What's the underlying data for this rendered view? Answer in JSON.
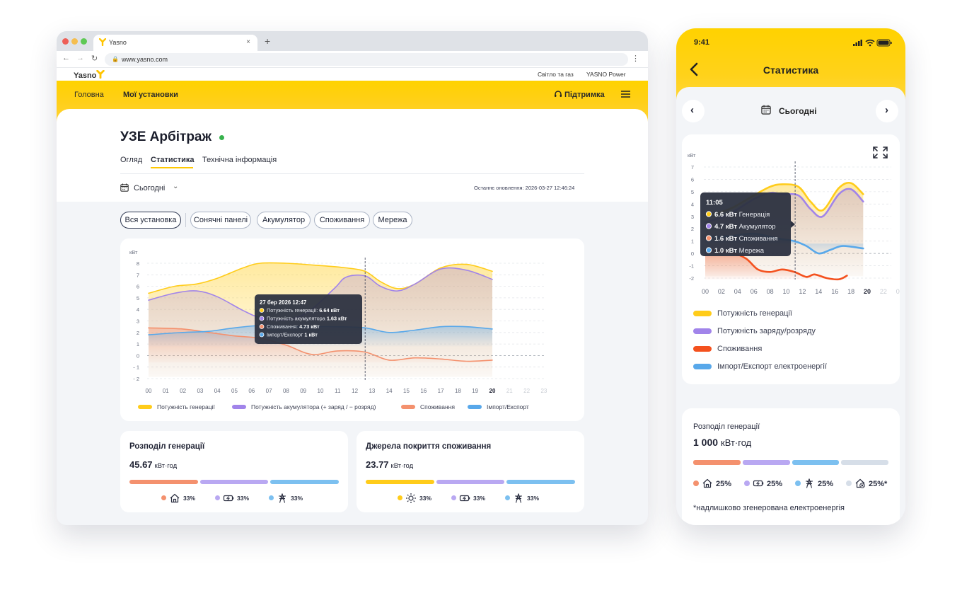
{
  "browser": {
    "tab_title": "Yasno",
    "tab_close": "×",
    "new_tab": "+",
    "url": "www.yasno.com",
    "nav_back": "←",
    "nav_forward": "→",
    "nav_reload": "↻",
    "lock": "🔒",
    "menu": "⋮"
  },
  "site": {
    "logo": "Yasno",
    "top_links": [
      "Світло та газ",
      "YASNO Power"
    ],
    "nav": {
      "home": "Головна",
      "installations": "Мої установки",
      "support": "Підтримка"
    },
    "page_title": "УЗЕ Арбітраж",
    "tabs": [
      "Огляд",
      "Статистика",
      "Технічна інформація"
    ],
    "date_filter": "Сьогодні",
    "date_chevron": "⌄",
    "updated": "Останнє оновлення: 2026-03-27 12:46:24",
    "filters": [
      "Вся установка",
      "Сонячні панелі",
      "Акумулятор",
      "Споживання",
      "Мережа"
    ]
  },
  "chart_data": [
    {
      "type": "area",
      "ylabel": "кВт",
      "ylim": [
        -2,
        8
      ],
      "yticks": [
        "8",
        "7",
        "6",
        "5",
        "4",
        "3",
        "2",
        "1",
        "0",
        "- 1",
        "- 2"
      ],
      "categories": [
        "00",
        "01",
        "02",
        "03",
        "04",
        "05",
        "06",
        "07",
        "08",
        "09",
        "10",
        "11",
        "12",
        "13",
        "14",
        "15",
        "16",
        "17",
        "18",
        "19",
        "20",
        "21",
        "22",
        "23"
      ],
      "current_hour": "20",
      "cursor_x": 12.6,
      "series": [
        {
          "name": "Потужність генерації",
          "color": "#ffcc1a",
          "x": [
            0,
            1.5,
            2.8,
            4,
            5.5,
            6.5,
            8,
            10,
            11.5,
            12.6,
            13.5,
            14.5,
            15.5,
            17,
            18.5,
            20
          ],
          "values": [
            5.4,
            6.0,
            6.2,
            6.7,
            7.6,
            8.0,
            8.0,
            7.8,
            7.6,
            7.3,
            6.4,
            5.8,
            6.2,
            7.6,
            7.9,
            7.3
          ]
        },
        {
          "name": "Потужність акумулятора (+ заряд / − розряд)",
          "color": "#a184ea",
          "x": [
            0,
            1.5,
            2.8,
            4,
            5.5,
            6.5,
            8,
            9.3,
            10.8,
            11.5,
            12.6,
            13.5,
            14.5,
            15.5,
            17,
            18.5,
            20
          ],
          "values": [
            4.8,
            5.4,
            5.6,
            5.1,
            3.9,
            3.3,
            3.1,
            3.8,
            5.8,
            6.8,
            6.9,
            6.0,
            5.6,
            6.2,
            7.5,
            7.4,
            6.6
          ]
        },
        {
          "name": "Споживання",
          "color": "#f4916e",
          "x": [
            0,
            2,
            3.5,
            5,
            6.5,
            8,
            9.5,
            11,
            12.6,
            14,
            15.5,
            17,
            18.5,
            20
          ],
          "values": [
            2.4,
            2.3,
            2.0,
            1.7,
            1.5,
            0.9,
            0.1,
            0.4,
            0.3,
            -0.4,
            -0.2,
            -0.3,
            -0.5,
            -0.4
          ]
        },
        {
          "name": "Імпорт/Експорт",
          "color": "#58a8ea",
          "x": [
            0,
            2,
            3.5,
            5,
            6.5,
            8,
            9.5,
            11,
            12.6,
            14,
            15.5,
            17,
            18.5,
            20
          ],
          "values": [
            1.8,
            2.0,
            2.1,
            2.4,
            2.6,
            2.5,
            2.5,
            2.5,
            2.4,
            2.0,
            2.2,
            2.5,
            2.5,
            2.3
          ]
        }
      ],
      "tooltip": {
        "title": "27 бер 2026 12:47",
        "rows": [
          {
            "label": "Потужність генерації:",
            "value": "6.64 кВт",
            "color": "#ffcc1a"
          },
          {
            "label": "Потужність акумулятора",
            "value": "1.63 кВт",
            "color": "#a184ea"
          },
          {
            "label": "Споживання:",
            "value": "4.73 кВт",
            "color": "#f4916e"
          },
          {
            "label": "Імпорт/Експорт",
            "value": "1 кВт",
            "color": "#58a8ea"
          }
        ]
      },
      "legend": [
        {
          "label": "Потужність генерації",
          "color": "#ffcc1a"
        },
        {
          "label": "Потужність акумулятора (+ заряд / − розряд)",
          "color": "#a184ea"
        },
        {
          "label": "Споживання",
          "color": "#f4916e"
        },
        {
          "label": "Імпорт/Експорт",
          "color": "#58a8ea"
        }
      ]
    },
    {
      "type": "area",
      "ylabel": "кВт",
      "ylim": [
        -2,
        7
      ],
      "yticks": [
        "7",
        "6",
        "5",
        "4",
        "3",
        "2",
        "1",
        "0",
        "-1",
        "-2"
      ],
      "categories": [
        "00",
        "02",
        "04",
        "06",
        "08",
        "10",
        "12",
        "14",
        "16",
        "18",
        "20",
        "22",
        "00"
      ],
      "current_hour": "20",
      "cursor_x": 11.1,
      "series": [
        {
          "name": "Потужність генерації",
          "color": "#ffcc1a",
          "x": [
            0,
            3,
            6,
            8,
            9.5,
            11.5,
            13,
            14.5,
            16.5,
            18,
            19.5
          ],
          "values": [
            3.0,
            3.6,
            4.7,
            5.4,
            5.6,
            5.4,
            4.2,
            3.5,
            5.3,
            5.7,
            4.8
          ]
        },
        {
          "name": "Потужність заряду/розряду",
          "color": "#a184ea",
          "x": [
            0,
            3,
            6,
            8,
            9.5,
            11.5,
            13,
            14.5,
            16.5,
            18,
            19.5
          ],
          "values": [
            2.5,
            3.2,
            4.4,
            4.9,
            4.8,
            4.7,
            3.6,
            3.0,
            4.8,
            5.2,
            4.2
          ]
        },
        {
          "name": "Споживання",
          "color": "#f4511e",
          "x": [
            0,
            3,
            5,
            6.5,
            8,
            9.5,
            11,
            12.5,
            13.5,
            15,
            16.5,
            17.5
          ],
          "values": [
            0.3,
            0.1,
            -0.4,
            -1.3,
            -1.5,
            -1.3,
            -1.5,
            -1.9,
            -1.7,
            -2.0,
            -2.1,
            -1.8
          ]
        },
        {
          "name": "Імпорт/Експорт",
          "color": "#58a8ea",
          "x": [
            0,
            3,
            6,
            9,
            11,
            12.5,
            14,
            15.5,
            17,
            19.5
          ],
          "values": [
            1.3,
            1.4,
            1.6,
            1.2,
            1.0,
            0.6,
            0.0,
            0.3,
            0.6,
            0.4
          ]
        }
      ],
      "tooltip": {
        "title": "11:05",
        "rows": [
          {
            "value": "6.6 кВт",
            "label": "Генерація",
            "color": "#ffcc1a"
          },
          {
            "value": "4.7 кВт",
            "label": "Акумулятор",
            "color": "#a184ea"
          },
          {
            "value": "1.6 кВт",
            "label": "Споживання",
            "color": "#f4916e"
          },
          {
            "value": "1.0 кВт",
            "label": "Мережа",
            "color": "#58a8ea"
          }
        ]
      },
      "legend": [
        {
          "label": "Потужність генерації",
          "color": "#ffcc1a"
        },
        {
          "label": "Потужність заряду/розряду",
          "color": "#a184ea"
        },
        {
          "label": "Споживання",
          "color": "#f4511e"
        },
        {
          "label": "Імпорт/Експорт електроенергії",
          "color": "#58a8ea"
        }
      ]
    }
  ],
  "cards": {
    "generation": {
      "title": "Розподіл генерації",
      "value": "45.67",
      "unit": "кВт·год",
      "segments": [
        {
          "color": "#f4916e",
          "pct": "33%",
          "icon": "house-icon",
          "share": 0.333
        },
        {
          "color": "#b9a8f2",
          "pct": "33%",
          "icon": "battery-icon",
          "share": 0.333
        },
        {
          "color": "#7cc0f0",
          "pct": "33%",
          "icon": "power-tower-icon",
          "share": 0.334
        }
      ]
    },
    "consumption": {
      "title": "Джерела покриття споживання",
      "value": "23.77",
      "unit": "кВт·год",
      "segments": [
        {
          "color": "#ffcc1a",
          "pct": "33%",
          "icon": "sun-icon",
          "share": 0.333
        },
        {
          "color": "#b9a8f2",
          "pct": "33%",
          "icon": "battery-icon",
          "share": 0.333
        },
        {
          "color": "#7cc0f0",
          "pct": "33%",
          "icon": "power-tower-icon",
          "share": 0.334
        }
      ]
    }
  },
  "phone": {
    "time": "9:41",
    "title": "Статистика",
    "date": "Сьогодні",
    "prev": "‹",
    "next": "›",
    "gen_card": {
      "title": "Розподіл генерації",
      "value": "1 000",
      "unit": "кВт·год",
      "segments": [
        {
          "color": "#f4916e",
          "pct": "25%",
          "icon": "house-icon",
          "share": 0.25
        },
        {
          "color": "#b9a8f2",
          "pct": "25%",
          "icon": "battery-icon",
          "share": 0.25
        },
        {
          "color": "#7cc0f0",
          "pct": "25%",
          "icon": "power-tower-icon",
          "share": 0.25
        },
        {
          "color": "#d6dee8",
          "pct": "25%*",
          "icon": "excess-house-icon",
          "share": 0.25
        }
      ],
      "footnote": "*надлишково згенерована електроенергія"
    }
  }
}
